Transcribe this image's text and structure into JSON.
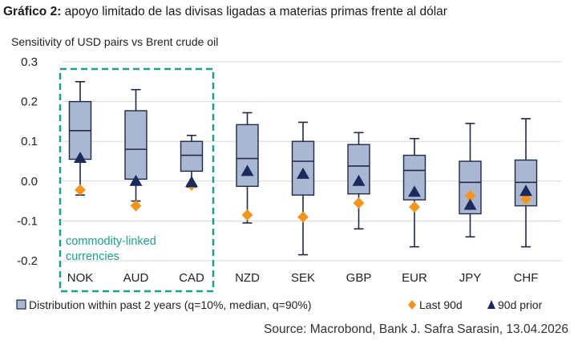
{
  "heading": {
    "label": "Gráfico 2:",
    "text": "apoyo limitado de las divisas ligadas a materias primas frente al dólar"
  },
  "source": "Source: Macrobond, Bank J. Safra Sarasin, 13.04.2026",
  "colors": {
    "box_fill": "#a9b7d3",
    "box_stroke": "#1f2a44",
    "whisker": "#1f2a44",
    "diamond": "#f7941d",
    "triangle": "#1b2a5c",
    "highlight": "#1f9e89",
    "grid": "#d9d9d9",
    "axis_text": "#222222"
  },
  "chart_data": {
    "type": "box",
    "title": "Sensitivity of USD pairs vs Brent crude oil",
    "xlabel": "",
    "ylabel": "",
    "ylim": [
      -0.2,
      0.3
    ],
    "yticks": [
      0.3,
      0.2,
      0.1,
      0.0,
      -0.1,
      -0.2
    ],
    "ytick_labels": [
      "0.3",
      "0.2",
      "0.1",
      "0.0",
      "-0.1",
      "-0.2"
    ],
    "categories": [
      "NOK",
      "AUD",
      "CAD",
      "NZD",
      "SEK",
      "GBP",
      "EUR",
      "JPY",
      "CHF"
    ],
    "series": [
      {
        "name": "Distribution within past 2 years (q=10%, median, q=90%)",
        "kind": "box",
        "whisker_low": [
          -0.035,
          -0.05,
          -0.015,
          -0.105,
          -0.185,
          -0.12,
          -0.165,
          -0.14,
          -0.165
        ],
        "q10": [
          0.055,
          0.005,
          0.025,
          -0.013,
          -0.035,
          -0.032,
          -0.047,
          -0.082,
          -0.062
        ],
        "median": [
          0.127,
          0.08,
          0.065,
          0.057,
          0.05,
          0.038,
          0.027,
          -0.003,
          -0.003
        ],
        "q90": [
          0.2,
          0.177,
          0.1,
          0.142,
          0.1,
          0.092,
          0.065,
          0.05,
          0.053
        ],
        "whisker_high": [
          0.25,
          0.23,
          0.115,
          0.172,
          0.148,
          0.122,
          0.107,
          0.145,
          0.157
        ]
      },
      {
        "name": "Last 90d",
        "kind": "diamond",
        "values": [
          -0.022,
          -0.062,
          -0.01,
          -0.085,
          -0.09,
          -0.055,
          -0.065,
          -0.037,
          -0.045
        ]
      },
      {
        "name": "90d prior",
        "kind": "triangle",
        "values": [
          0.058,
          0.0,
          -0.003,
          0.025,
          0.018,
          0.0,
          -0.027,
          -0.06,
          -0.025
        ]
      }
    ],
    "annotation": {
      "text_line1": "commodity-linked",
      "text_line2": "currencies",
      "group": [
        "NOK",
        "AUD",
        "CAD"
      ]
    },
    "legend": {
      "position": "bottom",
      "items": [
        "Distribution within past 2 years (q=10%, median, q=90%)",
        "Last 90d",
        "90d prior"
      ]
    }
  }
}
